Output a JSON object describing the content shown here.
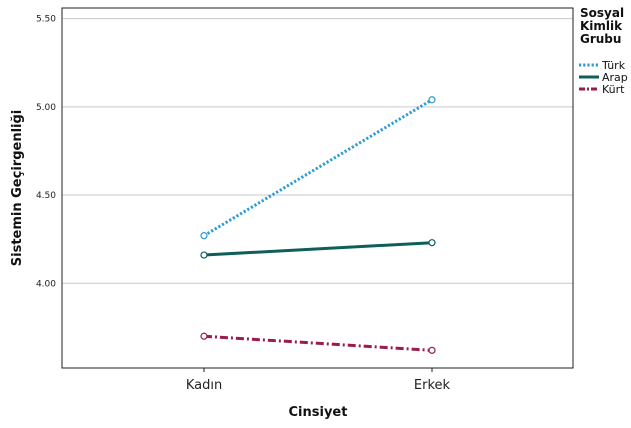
{
  "chart_data": {
    "type": "line",
    "title": "",
    "xlabel": "Cinsiyet",
    "ylabel": "Sistemin Geçirgenliği",
    "categories": [
      "Kadın",
      "Erkek"
    ],
    "ylim": [
      3.52,
      5.56
    ],
    "yticks": [
      "4.00",
      "4.50",
      "5.00",
      "5.50"
    ],
    "grid": true,
    "legend_title": [
      "Sosyal",
      "Kimlik",
      "Grubu"
    ],
    "legend_position": "top-right",
    "series": [
      {
        "name": "Türk",
        "values": [
          4.27,
          5.04
        ],
        "color": "#2b9bd8",
        "style": "dotted"
      },
      {
        "name": "Arap",
        "values": [
          4.16,
          4.23
        ],
        "color": "#0e5e5a",
        "style": "solid"
      },
      {
        "name": "Kürt",
        "values": [
          3.7,
          3.62
        ],
        "color": "#9b1b4f",
        "style": "dashdot"
      }
    ]
  }
}
